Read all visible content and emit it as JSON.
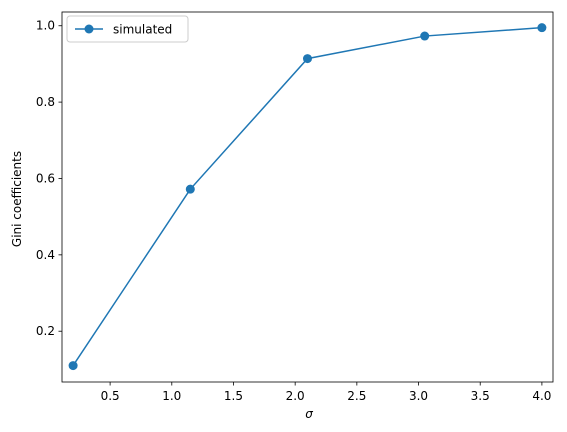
{
  "chart_data": {
    "type": "line",
    "title": "",
    "xlabel": "σ",
    "ylabel": "Gini coefficients",
    "xlim": [
      0.11,
      4.09
    ],
    "ylim": [
      0.067,
      1.036
    ],
    "xticks": [
      0.5,
      1.0,
      1.5,
      2.0,
      2.5,
      3.0,
      3.5,
      4.0
    ],
    "xtick_labels": [
      "0.5",
      "1.0",
      "1.5",
      "2.0",
      "2.5",
      "3.0",
      "3.5",
      "4.0"
    ],
    "yticks": [
      0.2,
      0.4,
      0.6,
      0.8,
      1.0
    ],
    "ytick_labels": [
      "0.2",
      "0.4",
      "0.6",
      "0.8",
      "1.0"
    ],
    "grid": false,
    "legend_position": "upper-left",
    "series": [
      {
        "name": "simulated",
        "color": "#1f77b4",
        "marker": "circle",
        "x": [
          0.2,
          1.15,
          2.1,
          3.05,
          4.0
        ],
        "y": [
          0.11,
          0.572,
          0.914,
          0.973,
          0.995
        ]
      }
    ]
  }
}
